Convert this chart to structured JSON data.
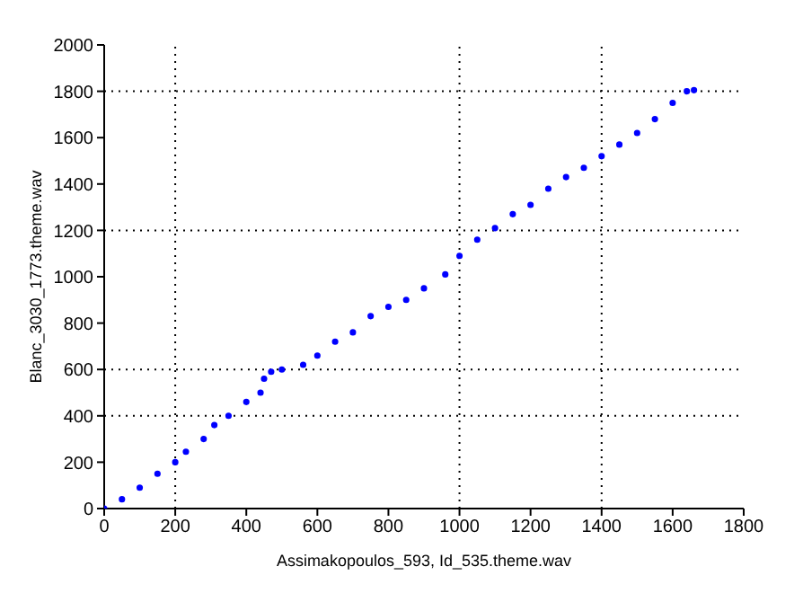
{
  "chart_data": {
    "type": "scatter",
    "xlabel": "Assimakopoulos_593, Id_535.theme.wav",
    "ylabel": "Blanc_3030_1773.theme.wav",
    "x": [
      0,
      50,
      100,
      150,
      200,
      230,
      280,
      310,
      350,
      400,
      440,
      450,
      470,
      500,
      560,
      600,
      650,
      700,
      750,
      800,
      850,
      900,
      960,
      1000,
      1050,
      1100,
      1150,
      1200,
      1250,
      1300,
      1350,
      1400,
      1450,
      1500,
      1550,
      1600,
      1640,
      1660
    ],
    "series": [
      {
        "color": "#0000ff",
        "values": [
          0,
          40,
          90,
          150,
          200,
          245,
          300,
          360,
          400,
          460,
          500,
          560,
          590,
          600,
          620,
          660,
          720,
          760,
          830,
          870,
          900,
          950,
          1010,
          1090,
          1160,
          1210,
          1270,
          1310,
          1380,
          1430,
          1470,
          1520,
          1570,
          1620,
          1680,
          1750,
          1800,
          1805
        ]
      }
    ],
    "marker": "circle",
    "xlim": [
      0,
      1800
    ],
    "xticks": [
      0,
      200,
      400,
      600,
      800,
      1000,
      1200,
      1400,
      1600,
      1800
    ],
    "ylim": [
      0,
      2000
    ],
    "yticks": [
      0,
      200,
      400,
      600,
      800,
      1000,
      1200,
      1400,
      1600,
      1800,
      2000
    ],
    "ref_lines": [
      {
        "axis": "x",
        "value": 200,
        "line_style": "dotted",
        "color": "#000000"
      },
      {
        "axis": "x",
        "value": 1000,
        "line_style": "dotted",
        "color": "#000000"
      },
      {
        "axis": "x",
        "value": 1400,
        "line_style": "dotted",
        "color": "#000000"
      },
      {
        "axis": "y",
        "value": 400,
        "line_style": "dotted",
        "color": "#000000"
      },
      {
        "axis": "y",
        "value": 600,
        "line_style": "dotted",
        "color": "#000000"
      },
      {
        "axis": "y",
        "value": 1200,
        "line_style": "dotted",
        "color": "#000000"
      },
      {
        "axis": "y",
        "value": 1800,
        "line_style": "dotted",
        "color": "#000000"
      }
    ]
  }
}
